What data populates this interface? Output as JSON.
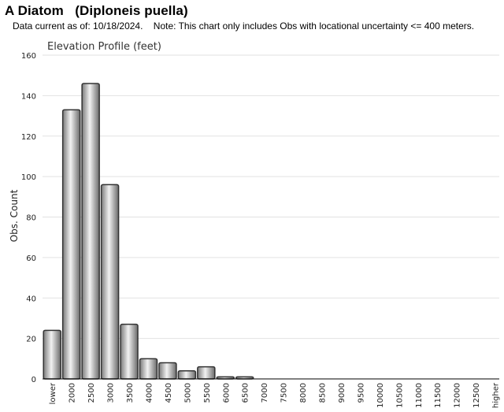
{
  "page": {
    "title": "A Diatom   (Diploneis puella)",
    "subtitle": "Data current as of: 10/18/2024.    Note: This chart only includes Obs with locational uncertainty <= 400 meters."
  },
  "chart_data": {
    "type": "bar",
    "title": "Elevation Profile (feet)",
    "xlabel": "",
    "ylabel": "Obs. Count",
    "ylim": [
      0,
      160
    ],
    "yticks": [
      0,
      20,
      40,
      60,
      80,
      100,
      120,
      140,
      160
    ],
    "grid": true,
    "categories": [
      "lower",
      "2000",
      "2500",
      "3000",
      "3500",
      "4000",
      "4500",
      "5000",
      "5500",
      "6000",
      "6500",
      "7000",
      "7500",
      "8000",
      "8500",
      "9000",
      "9500",
      "10000",
      "10500",
      "11000",
      "11500",
      "12000",
      "12500",
      "higher"
    ],
    "values": [
      24,
      133,
      146,
      96,
      27,
      10,
      8,
      4,
      6,
      1,
      1,
      0,
      0,
      0,
      0,
      0,
      0,
      0,
      0,
      0,
      0,
      0,
      0,
      0
    ],
    "colors": {
      "bar_fill": "#b8b8b8",
      "bar_stroke": "#333333",
      "grid": "#e2e2e2",
      "axis": "#000000"
    }
  }
}
